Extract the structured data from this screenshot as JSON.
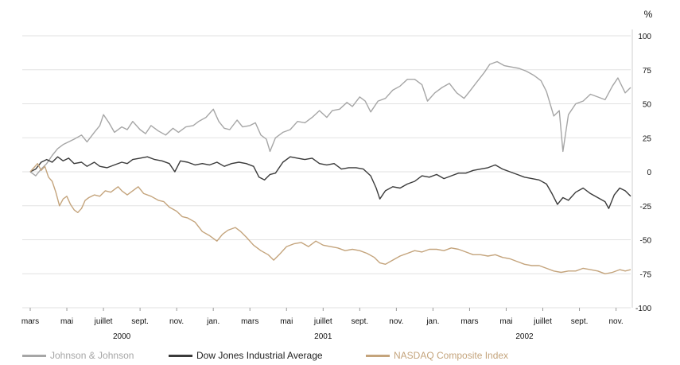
{
  "chart_data": {
    "type": "line",
    "unit_label": "%",
    "ylim": [
      -100,
      100
    ],
    "yticks": [
      100,
      75,
      50,
      25,
      0,
      -25,
      -50,
      -75,
      -100
    ],
    "grid": true,
    "legend_position": "bottom",
    "month_ticks": [
      {
        "label": "mars",
        "t": 0
      },
      {
        "label": "mai",
        "t": 2
      },
      {
        "label": "juillet",
        "t": 4
      },
      {
        "label": "sept.",
        "t": 6
      },
      {
        "label": "nov.",
        "t": 8
      },
      {
        "label": "jan.",
        "t": 10
      },
      {
        "label": "mars",
        "t": 12
      },
      {
        "label": "mai",
        "t": 14
      },
      {
        "label": "juillet",
        "t": 16
      },
      {
        "label": "sept.",
        "t": 18
      },
      {
        "label": "nov.",
        "t": 20
      },
      {
        "label": "jan.",
        "t": 22
      },
      {
        "label": "mars",
        "t": 24
      },
      {
        "label": "mai",
        "t": 26
      },
      {
        "label": "juillet",
        "t": 28
      },
      {
        "label": "sept.",
        "t": 30
      },
      {
        "label": "nov.",
        "t": 32
      }
    ],
    "year_labels": [
      {
        "label": "2000",
        "t": 5
      },
      {
        "label": "2001",
        "t": 16
      },
      {
        "label": "2002",
        "t": 27
      }
    ],
    "series": [
      {
        "name": "Johnson & Johnson",
        "color": "#a6a6a6",
        "points": [
          [
            0,
            0
          ],
          [
            0.3,
            -3
          ],
          [
            0.6,
            2
          ],
          [
            0.9,
            6
          ],
          [
            1.2,
            12
          ],
          [
            1.5,
            17
          ],
          [
            1.8,
            20
          ],
          [
            2.1,
            22
          ],
          [
            2.4,
            24
          ],
          [
            2.8,
            27
          ],
          [
            3.1,
            22
          ],
          [
            3.5,
            29
          ],
          [
            3.8,
            34
          ],
          [
            4.0,
            42
          ],
          [
            4.3,
            36
          ],
          [
            4.6,
            29
          ],
          [
            5.0,
            33
          ],
          [
            5.3,
            31
          ],
          [
            5.6,
            37
          ],
          [
            6.0,
            31
          ],
          [
            6.3,
            28
          ],
          [
            6.6,
            34
          ],
          [
            7.0,
            30
          ],
          [
            7.4,
            27
          ],
          [
            7.8,
            32
          ],
          [
            8.1,
            29
          ],
          [
            8.5,
            33
          ],
          [
            8.9,
            34
          ],
          [
            9.2,
            37
          ],
          [
            9.6,
            40
          ],
          [
            10.0,
            46
          ],
          [
            10.3,
            37
          ],
          [
            10.6,
            32
          ],
          [
            10.9,
            31
          ],
          [
            11.3,
            38
          ],
          [
            11.6,
            33
          ],
          [
            12.0,
            34
          ],
          [
            12.3,
            36
          ],
          [
            12.6,
            27
          ],
          [
            12.9,
            24
          ],
          [
            13.1,
            15
          ],
          [
            13.4,
            25
          ],
          [
            13.8,
            29
          ],
          [
            14.2,
            31
          ],
          [
            14.6,
            37
          ],
          [
            15.0,
            36
          ],
          [
            15.4,
            40
          ],
          [
            15.8,
            45
          ],
          [
            16.2,
            40
          ],
          [
            16.5,
            45
          ],
          [
            16.9,
            46
          ],
          [
            17.3,
            51
          ],
          [
            17.6,
            48
          ],
          [
            18.0,
            55
          ],
          [
            18.3,
            52
          ],
          [
            18.6,
            44
          ],
          [
            19.0,
            52
          ],
          [
            19.4,
            54
          ],
          [
            19.8,
            60
          ],
          [
            20.2,
            63
          ],
          [
            20.6,
            68
          ],
          [
            21.0,
            68
          ],
          [
            21.4,
            64
          ],
          [
            21.7,
            52
          ],
          [
            22.1,
            58
          ],
          [
            22.5,
            62
          ],
          [
            22.9,
            65
          ],
          [
            23.3,
            58
          ],
          [
            23.7,
            54
          ],
          [
            24.0,
            59
          ],
          [
            24.4,
            66
          ],
          [
            24.8,
            73
          ],
          [
            25.1,
            79
          ],
          [
            25.5,
            81
          ],
          [
            25.9,
            78
          ],
          [
            26.3,
            77
          ],
          [
            26.7,
            76
          ],
          [
            27.1,
            74
          ],
          [
            27.5,
            71
          ],
          [
            27.9,
            67
          ],
          [
            28.2,
            59
          ],
          [
            28.6,
            41
          ],
          [
            28.9,
            45
          ],
          [
            29.1,
            15
          ],
          [
            29.4,
            42
          ],
          [
            29.8,
            50
          ],
          [
            30.2,
            52
          ],
          [
            30.6,
            57
          ],
          [
            31.0,
            55
          ],
          [
            31.4,
            53
          ],
          [
            31.8,
            63
          ],
          [
            32.1,
            69
          ],
          [
            32.5,
            58
          ],
          [
            32.8,
            62
          ]
        ]
      },
      {
        "name": "Dow Jones Industrial Average",
        "color": "#3a3a3a",
        "points": [
          [
            0,
            0
          ],
          [
            0.3,
            2
          ],
          [
            0.6,
            7
          ],
          [
            0.9,
            9
          ],
          [
            1.2,
            7
          ],
          [
            1.5,
            11
          ],
          [
            1.8,
            8
          ],
          [
            2.1,
            10
          ],
          [
            2.4,
            6
          ],
          [
            2.8,
            7
          ],
          [
            3.1,
            4
          ],
          [
            3.5,
            7
          ],
          [
            3.8,
            4
          ],
          [
            4.2,
            3
          ],
          [
            4.6,
            5
          ],
          [
            5.0,
            7
          ],
          [
            5.3,
            6
          ],
          [
            5.6,
            9
          ],
          [
            6.0,
            10
          ],
          [
            6.4,
            11
          ],
          [
            6.8,
            9
          ],
          [
            7.2,
            8
          ],
          [
            7.6,
            6
          ],
          [
            7.9,
            0
          ],
          [
            8.2,
            8
          ],
          [
            8.6,
            7
          ],
          [
            9.0,
            5
          ],
          [
            9.4,
            6
          ],
          [
            9.8,
            5
          ],
          [
            10.2,
            7
          ],
          [
            10.6,
            4
          ],
          [
            11.0,
            6
          ],
          [
            11.4,
            7
          ],
          [
            11.8,
            6
          ],
          [
            12.2,
            4
          ],
          [
            12.5,
            -4
          ],
          [
            12.8,
            -6
          ],
          [
            13.1,
            -2
          ],
          [
            13.4,
            -1
          ],
          [
            13.8,
            7
          ],
          [
            14.2,
            11
          ],
          [
            14.6,
            10
          ],
          [
            15.0,
            9
          ],
          [
            15.4,
            10
          ],
          [
            15.8,
            6
          ],
          [
            16.2,
            5
          ],
          [
            16.6,
            6
          ],
          [
            17.0,
            2
          ],
          [
            17.4,
            3
          ],
          [
            17.8,
            3
          ],
          [
            18.2,
            2
          ],
          [
            18.6,
            -3
          ],
          [
            18.9,
            -12
          ],
          [
            19.1,
            -20
          ],
          [
            19.4,
            -14
          ],
          [
            19.8,
            -11
          ],
          [
            20.2,
            -12
          ],
          [
            20.6,
            -9
          ],
          [
            21.0,
            -7
          ],
          [
            21.4,
            -3
          ],
          [
            21.8,
            -4
          ],
          [
            22.2,
            -2
          ],
          [
            22.6,
            -5
          ],
          [
            23.0,
            -3
          ],
          [
            23.4,
            -1
          ],
          [
            23.8,
            -1
          ],
          [
            24.2,
            1
          ],
          [
            24.6,
            2
          ],
          [
            25.0,
            3
          ],
          [
            25.4,
            5
          ],
          [
            25.8,
            2
          ],
          [
            26.2,
            0
          ],
          [
            26.6,
            -2
          ],
          [
            27.0,
            -4
          ],
          [
            27.4,
            -5
          ],
          [
            27.8,
            -6
          ],
          [
            28.2,
            -9
          ],
          [
            28.5,
            -16
          ],
          [
            28.8,
            -24
          ],
          [
            29.1,
            -19
          ],
          [
            29.4,
            -21
          ],
          [
            29.8,
            -15
          ],
          [
            30.2,
            -12
          ],
          [
            30.6,
            -16
          ],
          [
            31.0,
            -19
          ],
          [
            31.4,
            -22
          ],
          [
            31.6,
            -27
          ],
          [
            31.9,
            -17
          ],
          [
            32.2,
            -12
          ],
          [
            32.5,
            -14
          ],
          [
            32.8,
            -18
          ]
        ]
      },
      {
        "name": "NASDAQ Composite Index",
        "color": "#c4a47c",
        "points": [
          [
            0,
            0
          ],
          [
            0.2,
            3
          ],
          [
            0.4,
            6
          ],
          [
            0.6,
            1
          ],
          [
            0.8,
            4
          ],
          [
            1.0,
            -4
          ],
          [
            1.2,
            -7
          ],
          [
            1.4,
            -15
          ],
          [
            1.6,
            -25
          ],
          [
            1.8,
            -20
          ],
          [
            2.0,
            -18
          ],
          [
            2.2,
            -24
          ],
          [
            2.4,
            -28
          ],
          [
            2.6,
            -30
          ],
          [
            2.8,
            -27
          ],
          [
            3.0,
            -21
          ],
          [
            3.2,
            -19
          ],
          [
            3.5,
            -17
          ],
          [
            3.8,
            -18
          ],
          [
            4.1,
            -14
          ],
          [
            4.4,
            -15
          ],
          [
            4.8,
            -11
          ],
          [
            5.0,
            -14
          ],
          [
            5.3,
            -17
          ],
          [
            5.6,
            -14
          ],
          [
            5.9,
            -11
          ],
          [
            6.2,
            -16
          ],
          [
            6.6,
            -18
          ],
          [
            7.0,
            -21
          ],
          [
            7.3,
            -22
          ],
          [
            7.6,
            -26
          ],
          [
            8.0,
            -29
          ],
          [
            8.3,
            -33
          ],
          [
            8.6,
            -34
          ],
          [
            9.0,
            -37
          ],
          [
            9.4,
            -44
          ],
          [
            9.8,
            -47
          ],
          [
            10.2,
            -51
          ],
          [
            10.5,
            -46
          ],
          [
            10.8,
            -43
          ],
          [
            11.2,
            -41
          ],
          [
            11.5,
            -44
          ],
          [
            11.8,
            -48
          ],
          [
            12.2,
            -54
          ],
          [
            12.6,
            -58
          ],
          [
            13.0,
            -61
          ],
          [
            13.3,
            -65
          ],
          [
            13.6,
            -61
          ],
          [
            14.0,
            -55
          ],
          [
            14.4,
            -53
          ],
          [
            14.8,
            -52
          ],
          [
            15.2,
            -55
          ],
          [
            15.6,
            -51
          ],
          [
            16.0,
            -54
          ],
          [
            16.4,
            -55
          ],
          [
            16.8,
            -56
          ],
          [
            17.2,
            -58
          ],
          [
            17.6,
            -57
          ],
          [
            18.0,
            -58
          ],
          [
            18.4,
            -60
          ],
          [
            18.8,
            -63
          ],
          [
            19.1,
            -67
          ],
          [
            19.4,
            -68
          ],
          [
            19.8,
            -65
          ],
          [
            20.2,
            -62
          ],
          [
            20.6,
            -60
          ],
          [
            21.0,
            -58
          ],
          [
            21.4,
            -59
          ],
          [
            21.8,
            -57
          ],
          [
            22.2,
            -57
          ],
          [
            22.6,
            -58
          ],
          [
            23.0,
            -56
          ],
          [
            23.4,
            -57
          ],
          [
            23.8,
            -59
          ],
          [
            24.2,
            -61
          ],
          [
            24.6,
            -61
          ],
          [
            25.0,
            -62
          ],
          [
            25.4,
            -61
          ],
          [
            25.8,
            -63
          ],
          [
            26.2,
            -64
          ],
          [
            26.6,
            -66
          ],
          [
            27.0,
            -68
          ],
          [
            27.4,
            -69
          ],
          [
            27.8,
            -69
          ],
          [
            28.2,
            -71
          ],
          [
            28.6,
            -73
          ],
          [
            29.0,
            -74
          ],
          [
            29.4,
            -73
          ],
          [
            29.8,
            -73
          ],
          [
            30.2,
            -71
          ],
          [
            30.6,
            -72
          ],
          [
            31.0,
            -73
          ],
          [
            31.4,
            -75
          ],
          [
            31.8,
            -74
          ],
          [
            32.2,
            -72
          ],
          [
            32.5,
            -73
          ],
          [
            32.8,
            -72
          ]
        ]
      }
    ]
  }
}
